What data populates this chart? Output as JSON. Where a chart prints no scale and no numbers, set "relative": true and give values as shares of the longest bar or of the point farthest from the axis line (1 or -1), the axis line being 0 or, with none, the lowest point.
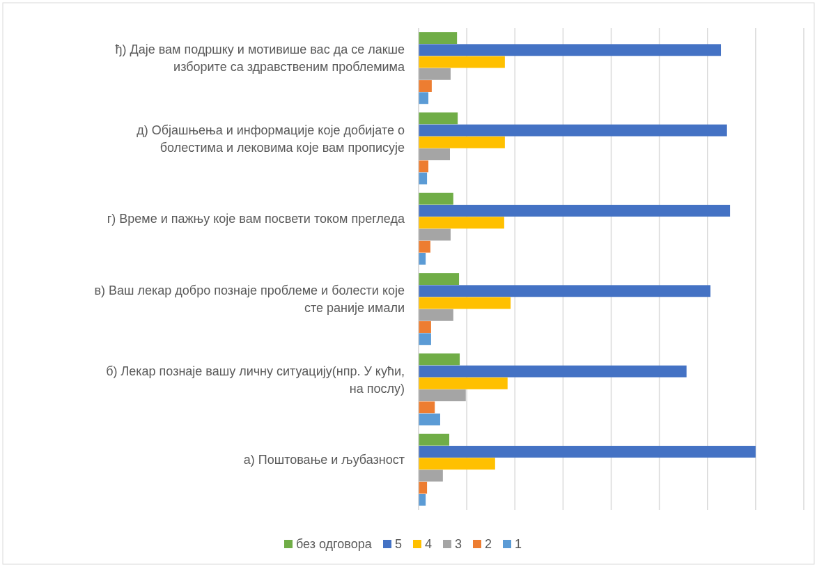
{
  "chart_data": {
    "type": "bar",
    "orientation": "horizontal",
    "relative": true,
    "grid": "x",
    "legend": "bottom",
    "categories": [
      "ђ) Даје вам подршку и мотивише вас да се лакше изборите са здравственим проблемима",
      "д) Објашњења и информације које добијате о болестима и лековима које вам прописује",
      "г) Време и пажњу које вам посвети током прегледа",
      "в) Ваш лекар добро познаје проблеме и болести које сте раније имали",
      "б) Лекар познаје вашу личну ситуацију(нпр. У кући, на послу)",
      "а) Поштовање и љубазност"
    ],
    "series": [
      {
        "name": "без одговора",
        "color": "#70ad47",
        "values": [
          0.114,
          0.116,
          0.103,
          0.12,
          0.122,
          0.091
        ]
      },
      {
        "name": "5",
        "color": "#4472c4",
        "values": [
          0.897,
          0.915,
          0.924,
          0.866,
          0.795,
          1
        ]
      },
      {
        "name": "4",
        "color": "#ffc000",
        "values": [
          0.256,
          0.256,
          0.254,
          0.273,
          0.264,
          0.227
        ]
      },
      {
        "name": "3",
        "color": "#a5a5a5",
        "values": [
          0.095,
          0.093,
          0.095,
          0.103,
          0.14,
          0.072
        ]
      },
      {
        "name": "2",
        "color": "#ed7d31",
        "values": [
          0.039,
          0.029,
          0.035,
          0.037,
          0.048,
          0.025
        ]
      },
      {
        "name": "1",
        "color": "#5b9bd5",
        "values": [
          0.029,
          0.025,
          0.021,
          0.037,
          0.064,
          0.021
        ]
      }
    ]
  }
}
